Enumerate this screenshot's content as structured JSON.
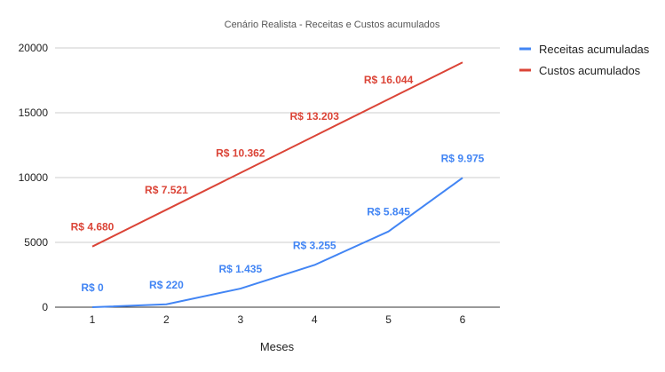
{
  "chart_data": {
    "type": "line",
    "title": "Cenário Realista - Receitas e Custos acumulados",
    "xlabel": "Meses",
    "ylabel": "",
    "categories": [
      "1",
      "2",
      "3",
      "4",
      "5",
      "6"
    ],
    "ylim": [
      0,
      20000
    ],
    "yticks": [
      "0",
      "5000",
      "10000",
      "15000",
      "20000"
    ],
    "grid": true,
    "legend_position": "right",
    "series": [
      {
        "name": "Receitas acumuladas",
        "color": "#4285f4",
        "values": [
          0,
          220,
          1435,
          3255,
          5845,
          9975
        ],
        "labels": [
          "R$ 0",
          "R$ 220",
          "R$ 1.435",
          "R$ 3.255",
          "R$ 5.845",
          "R$ 9.975"
        ]
      },
      {
        "name": "Custos acumulados",
        "color": "#db4437",
        "values": [
          4680,
          7521,
          10362,
          13203,
          16044,
          18885
        ],
        "labels": [
          "R$ 4.680",
          "R$ 7.521",
          "R$ 10.362",
          "R$ 13.203",
          "R$ 16.044",
          ""
        ]
      }
    ]
  }
}
